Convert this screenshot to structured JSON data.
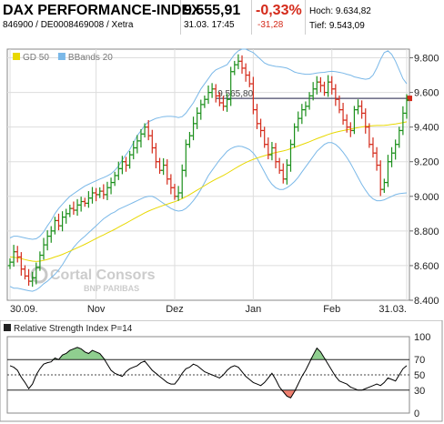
{
  "header": {
    "title": "DAX PERFORMANCE-INDEX",
    "ids": "846900 / DE0008469008 / Xetra",
    "price": "9.555,91",
    "datetime": "31.03. 17:45",
    "change_pct": "-0,33%",
    "change_abs": "-31,28",
    "high_label": "Hoch:",
    "high_value": "9.634,82",
    "low_label": "Tief:",
    "low_value": "9.543,09"
  },
  "colors": {
    "up": "#1b8f1b",
    "down": "#d42a1a",
    "sma": "#e8d800",
    "bbands": "#7ab8e8",
    "rsi_line": "#000000",
    "rsi_fill_over": "#8fce8f",
    "rsi_fill_under": "#f08070",
    "change_text": "#d42a1a",
    "grid": "#dddddd",
    "ref_line": "#4a4a6a"
  },
  "watermark": {
    "brand": "Cortal Consors",
    "sub": "BNP PARIBAS"
  },
  "chart_data": [
    {
      "type": "ohlc",
      "title": "",
      "legend": [
        {
          "name": "GD 50",
          "color": "#e8d800"
        },
        {
          "name": "BBands 20",
          "color": "#7ab8e8"
        }
      ],
      "legend_position": "top-left",
      "x_ticks": [
        "30.09.",
        "Nov",
        "Dez",
        "Jan",
        "Feb",
        "31.03."
      ],
      "x_tick_index": [
        0,
        23,
        44,
        65,
        86,
        106
      ],
      "y_ticks": [
        "8.400",
        "8.600",
        "8.800",
        "9.000",
        "9.200",
        "9.400",
        "9.600",
        "9.800"
      ],
      "ylim": [
        8400,
        9850
      ],
      "grid": true,
      "reference_line": {
        "value": 9565.8,
        "label": "9.565,80"
      },
      "close": [
        8620,
        8680,
        8650,
        8580,
        8540,
        8510,
        8530,
        8590,
        8660,
        8720,
        8770,
        8800,
        8860,
        8830,
        8880,
        8900,
        8930,
        8920,
        8950,
        8970,
        8960,
        8990,
        9020,
        9010,
        9030,
        9010,
        9050,
        9080,
        9120,
        9160,
        9200,
        9180,
        9240,
        9280,
        9320,
        9360,
        9400,
        9350,
        9280,
        9200,
        9150,
        9180,
        9100,
        9050,
        9000,
        9020,
        9150,
        9300,
        9350,
        9420,
        9480,
        9530,
        9560,
        9600,
        9620,
        9580,
        9540,
        9520,
        9560,
        9720,
        9760,
        9780,
        9740,
        9700,
        9650,
        9500,
        9420,
        9380,
        9300,
        9240,
        9280,
        9200,
        9150,
        9100,
        9180,
        9300,
        9400,
        9450,
        9500,
        9520,
        9580,
        9620,
        9660,
        9640,
        9600,
        9660,
        9620,
        9560,
        9500,
        9440,
        9400,
        9380,
        9500,
        9520,
        9480,
        9400,
        9300,
        9250,
        9180,
        9040,
        9080,
        9200,
        9250,
        9300,
        9380,
        9480,
        9556
      ],
      "series": [
        {
          "name": "GD 50",
          "values": [
            8650,
            8648,
            8645,
            8640,
            8635,
            8630,
            8626,
            8624,
            8626,
            8630,
            8636,
            8642,
            8650,
            8657,
            8665,
            8674,
            8683,
            8693,
            8703,
            8713,
            8723,
            8734,
            8745,
            8756,
            8767,
            8777,
            8788,
            8799,
            8810,
            8822,
            8834,
            8845,
            8857,
            8869,
            8881,
            8893,
            8905,
            8915,
            8924,
            8932,
            8940,
            8948,
            8955,
            8962,
            8969,
            8977,
            8987,
            8998,
            9010,
            9023,
            9036,
            9049,
            9062,
            9075,
            9087,
            9099,
            9110,
            9121,
            9133,
            9146,
            9159,
            9172,
            9184,
            9195,
            9205,
            9214,
            9221,
            9228,
            9235,
            9241,
            9248,
            9253,
            9258,
            9262,
            9268,
            9275,
            9283,
            9291,
            9299,
            9307,
            9315,
            9324,
            9333,
            9341,
            9349,
            9357,
            9364,
            9370,
            9375,
            9380,
            9384,
            9388,
            9393,
            9397,
            9401,
            9404,
            9406,
            9408,
            9409,
            9409,
            9410,
            9412,
            9415,
            9418,
            9422,
            9426,
            9430
          ]
        },
        {
          "name": "BBands 20 upper",
          "values": [
            8760,
            8770,
            8770,
            8765,
            8760,
            8755,
            8752,
            8755,
            8770,
            8795,
            8830,
            8860,
            8900,
            8930,
            8955,
            8978,
            9000,
            9015,
            9030,
            9045,
            9060,
            9070,
            9080,
            9090,
            9100,
            9108,
            9118,
            9130,
            9150,
            9175,
            9210,
            9240,
            9270,
            9310,
            9350,
            9380,
            9410,
            9430,
            9440,
            9450,
            9455,
            9460,
            9462,
            9462,
            9460,
            9455,
            9460,
            9480,
            9510,
            9540,
            9580,
            9620,
            9650,
            9680,
            9710,
            9730,
            9740,
            9750,
            9760,
            9790,
            9820,
            9840,
            9850,
            9850,
            9840,
            9830,
            9810,
            9790,
            9770,
            9760,
            9755,
            9750,
            9748,
            9745,
            9740,
            9730,
            9718,
            9712,
            9708,
            9705,
            9705,
            9708,
            9712,
            9715,
            9716,
            9720,
            9722,
            9720,
            9716,
            9712,
            9705,
            9700,
            9690,
            9685,
            9680,
            9676,
            9680,
            9700,
            9740,
            9790,
            9830,
            9840,
            9820,
            9780,
            9730,
            9680,
            9650
          ]
        },
        {
          "name": "BBands 20 lower",
          "values": [
            8480,
            8470,
            8470,
            8465,
            8460,
            8455,
            8452,
            8460,
            8475,
            8495,
            8510,
            8530,
            8550,
            8575,
            8605,
            8640,
            8675,
            8705,
            8730,
            8752,
            8770,
            8790,
            8810,
            8830,
            8850,
            8870,
            8885,
            8900,
            8910,
            8925,
            8935,
            8945,
            8955,
            8965,
            8975,
            8985,
            8995,
            9000,
            9000,
            8990,
            8975,
            8960,
            8945,
            8930,
            8920,
            8915,
            8918,
            8930,
            8950,
            8975,
            9005,
            9040,
            9080,
            9120,
            9150,
            9180,
            9210,
            9235,
            9260,
            9275,
            9285,
            9290,
            9288,
            9280,
            9270,
            9250,
            9220,
            9180,
            9140,
            9100,
            9070,
            9050,
            9040,
            9040,
            9050,
            9065,
            9085,
            9110,
            9140,
            9170,
            9200,
            9230,
            9260,
            9280,
            9300,
            9310,
            9310,
            9300,
            9280,
            9255,
            9225,
            9190,
            9150,
            9110,
            9070,
            9035,
            9005,
            8985,
            8975,
            8975,
            8980,
            8990,
            9000,
            9010,
            9015,
            9018,
            9020
          ]
        }
      ]
    },
    {
      "type": "line",
      "title": "Relative Strength Index P=14",
      "y_ticks": [
        "0",
        "30",
        "50",
        "70",
        "100"
      ],
      "ylim": [
        0,
        100
      ],
      "thresholds": [
        30,
        70
      ],
      "midline": 50,
      "series": [
        {
          "name": "Relative Strength Index P=14",
          "values": [
            62,
            60,
            56,
            47,
            40,
            32,
            38,
            50,
            58,
            64,
            66,
            67,
            72,
            70,
            76,
            78,
            82,
            84,
            86,
            84,
            80,
            78,
            82,
            80,
            78,
            72,
            64,
            56,
            52,
            50,
            48,
            54,
            58,
            60,
            62,
            66,
            68,
            62,
            56,
            52,
            48,
            44,
            40,
            38,
            38,
            44,
            52,
            58,
            60,
            64,
            62,
            58,
            54,
            52,
            50,
            48,
            46,
            50,
            56,
            60,
            62,
            60,
            54,
            48,
            44,
            40,
            38,
            36,
            40,
            46,
            52,
            44,
            34,
            28,
            22,
            20,
            28,
            38,
            48,
            56,
            66,
            76,
            85,
            80,
            72,
            64,
            56,
            48,
            42,
            40,
            38,
            34,
            32,
            30,
            30,
            32,
            34,
            36,
            38,
            36,
            40,
            46,
            44,
            42,
            50,
            58,
            62
          ]
        }
      ]
    }
  ]
}
